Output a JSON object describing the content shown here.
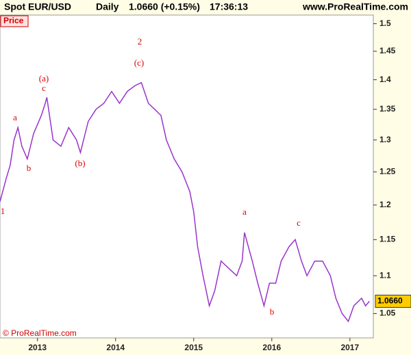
{
  "header": {
    "symbol": "Spot EUR/USD",
    "period": "Daily",
    "quote": "1.0660 (+0.15%)",
    "time": "17:36:13",
    "site": "www.ProRealTime.com"
  },
  "chart_data": {
    "type": "line",
    "title": "Price",
    "footer": "© ProRealTime.com",
    "x": [
      2012.52,
      2012.6,
      2012.65,
      2012.7,
      2012.75,
      2012.8,
      2012.87,
      2012.95,
      2013.05,
      2013.1,
      2013.12,
      2013.2,
      2013.3,
      2013.4,
      2013.5,
      2013.55,
      2013.65,
      2013.75,
      2013.85,
      2013.95,
      2014.05,
      2014.15,
      2014.25,
      2014.33,
      2014.42,
      2014.5,
      2014.58,
      2014.65,
      2014.75,
      2014.85,
      2014.95,
      2015.0,
      2015.05,
      2015.12,
      2015.2,
      2015.27,
      2015.35,
      2015.45,
      2015.55,
      2015.62,
      2015.65,
      2015.75,
      2015.82,
      2015.9,
      2015.97,
      2016.05,
      2016.12,
      2016.22,
      2016.3,
      2016.38,
      2016.45,
      2016.55,
      2016.65,
      2016.75,
      2016.82,
      2016.9,
      2016.98,
      2017.05,
      2017.15,
      2017.2,
      2017.25
    ],
    "series": [
      {
        "name": "Spot EUR/USD",
        "color": "#9933cc",
        "values": [
          1.205,
          1.24,
          1.26,
          1.3,
          1.32,
          1.29,
          1.27,
          1.31,
          1.34,
          1.36,
          1.37,
          1.3,
          1.29,
          1.32,
          1.3,
          1.28,
          1.33,
          1.35,
          1.36,
          1.38,
          1.36,
          1.38,
          1.39,
          1.395,
          1.36,
          1.35,
          1.34,
          1.3,
          1.27,
          1.25,
          1.22,
          1.19,
          1.14,
          1.1,
          1.06,
          1.08,
          1.12,
          1.11,
          1.1,
          1.12,
          1.16,
          1.12,
          1.09,
          1.06,
          1.09,
          1.09,
          1.12,
          1.14,
          1.15,
          1.12,
          1.1,
          1.12,
          1.12,
          1.1,
          1.07,
          1.05,
          1.04,
          1.06,
          1.07,
          1.06,
          1.066
        ]
      }
    ],
    "last_value_label": "1.0660",
    "xlim": [
      2012.52,
      2017.3
    ],
    "xticks": [
      2013,
      2014,
      2015,
      2016,
      2017
    ],
    "ylim": [
      1.019,
      1.516
    ],
    "yticks": [
      1.05,
      1.1,
      1.15,
      1.2,
      1.25,
      1.3,
      1.35,
      1.4,
      1.45,
      1.5
    ],
    "log_scale": true,
    "annotations": [
      "1",
      "a",
      "b",
      "(a)",
      "c",
      "(b)",
      "2",
      "(c)",
      "a",
      "b",
      "c"
    ],
    "annotation_color": "#dd0000"
  }
}
